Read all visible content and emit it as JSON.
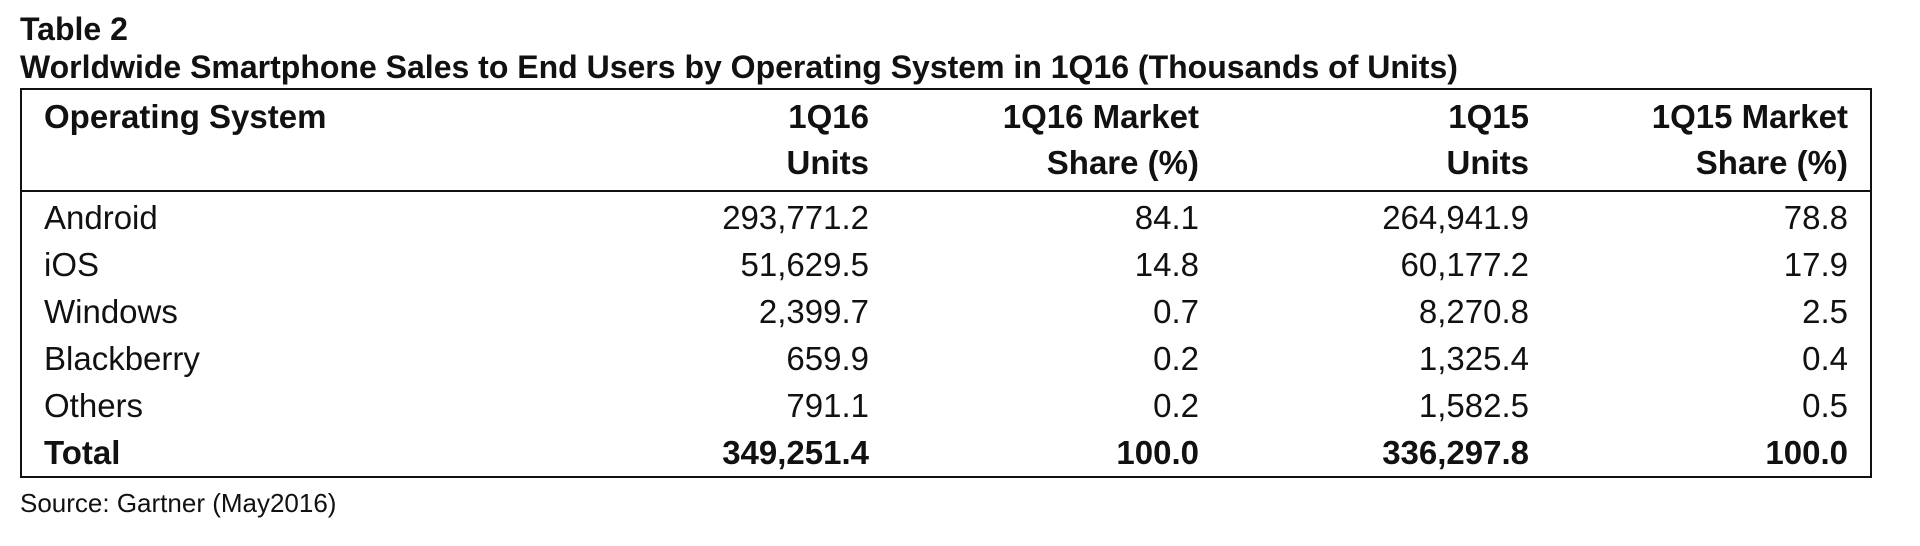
{
  "caption": {
    "label": "Table 2",
    "title": "Worldwide Smartphone Sales to End Users by Operating System in 1Q16 (Thousands of Units)"
  },
  "table": {
    "headers": [
      {
        "line1": "Operating System",
        "line2": ""
      },
      {
        "line1": "1Q16",
        "line2": "Units"
      },
      {
        "line1": "1Q16 Market",
        "line2": "Share (%)"
      },
      {
        "line1": "1Q15",
        "line2": "Units"
      },
      {
        "line1": "1Q15 Market",
        "line2": "Share (%)"
      }
    ],
    "rows": [
      {
        "os": "Android",
        "units_1q16": "293,771.2",
        "share_1q16": "84.1",
        "units_1q15": "264,941.9",
        "share_1q15": "78.8"
      },
      {
        "os": "iOS",
        "units_1q16": "51,629.5",
        "share_1q16": "14.8",
        "units_1q15": "60,177.2",
        "share_1q15": "17.9"
      },
      {
        "os": "Windows",
        "units_1q16": "2,399.7",
        "share_1q16": "0.7",
        "units_1q15": "8,270.8",
        "share_1q15": "2.5"
      },
      {
        "os": "Blackberry",
        "units_1q16": "659.9",
        "share_1q16": "0.2",
        "units_1q15": "1,325.4",
        "share_1q15": "0.4"
      },
      {
        "os": "Others",
        "units_1q16": "791.1",
        "share_1q16": "0.2",
        "units_1q15": "1,582.5",
        "share_1q15": "0.5"
      }
    ],
    "total": {
      "os": "Total",
      "units_1q16": "349,251.4",
      "share_1q16": "100.0",
      "units_1q15": "336,297.8",
      "share_1q15": "100.0"
    }
  },
  "source": "Source: Gartner (May2016)"
}
